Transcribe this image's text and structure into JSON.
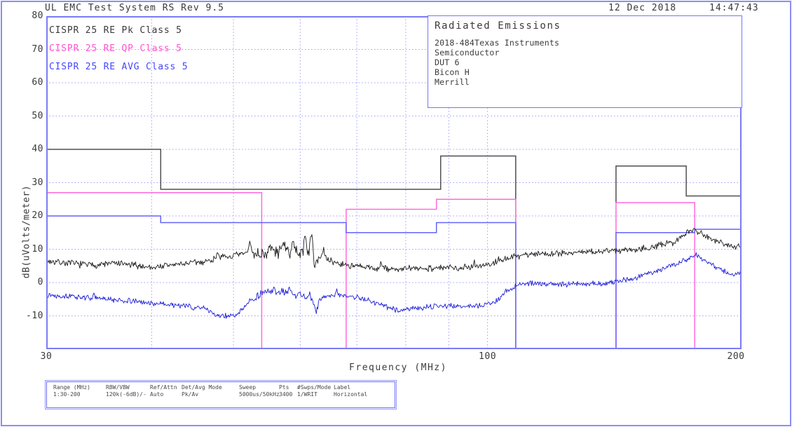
{
  "header": {
    "title": "UL EMC Test System RS Rev 9.5",
    "date": "12 Dec 2018",
    "time": "14:47:43"
  },
  "info_box": {
    "title": "Radiated Emissions",
    "lines": [
      "2018-484Texas Instruments",
      "Semiconductor",
      "DUT 6",
      "Bicon H",
      "Merrill"
    ]
  },
  "legend": [
    {
      "label": "CISPR 25 RE Pk Class 5",
      "color": "#3a3a3a"
    },
    {
      "label": "CISPR 25 RE QP Class 5",
      "color": "#ff55d0"
    },
    {
      "label": "CISPR 25 RE AVG Class 5",
      "color": "#4646ff"
    }
  ],
  "colors": {
    "frame_blue": "#8d8df8",
    "plot_border_blue": "#7b7bf5",
    "grid_dotted_blue": "#9d9dfa",
    "limit_black": "#4f4f4f",
    "limit_magenta": "#ff6ade",
    "limit_blue": "#6363fa",
    "trace_pk": "#1b1b1b",
    "trace_avg": "#1f1fd6"
  },
  "chart_data": {
    "type": "line",
    "title": "Radiated Emissions",
    "xlabel": "Frequency (MHz)",
    "ylabel": "dB(uVolts/meter)",
    "x_scale": "log",
    "xlim": [
      30,
      200
    ],
    "ylim": [
      -20,
      80
    ],
    "x_ticks": [
      30,
      100,
      200
    ],
    "y_ticks": [
      80,
      70,
      60,
      50,
      40,
      30,
      20,
      10,
      0,
      -10
    ],
    "x_gridlines": [
      40,
      50,
      60,
      70,
      80,
      90,
      100
    ],
    "grid": "dotted",
    "legend_position": "top-left",
    "limits": [
      {
        "name": "CISPR 25 RE Pk Class 5",
        "color": "#4f4f4f",
        "polylines": [
          [
            [
              30,
              40
            ],
            [
              41,
              40
            ],
            [
              41,
              28
            ],
            [
              88,
              28
            ],
            [
              88,
              38
            ],
            [
              108,
              38
            ],
            [
              108,
              -20
            ]
          ],
          [
            [
              142,
              24
            ],
            [
              142,
              35
            ],
            [
              172,
              35
            ],
            [
              172,
              26
            ],
            [
              200,
              26
            ]
          ]
        ]
      },
      {
        "name": "CISPR 25 RE QP Class 5",
        "color": "#ff6ade",
        "polylines": [
          [
            [
              30,
              27
            ],
            [
              54,
              27
            ],
            [
              54,
              -20
            ]
          ],
          [
            [
              68,
              -20
            ],
            [
              68,
              22
            ],
            [
              87,
              22
            ],
            [
              87,
              25
            ],
            [
              108,
              25
            ],
            [
              108,
              -20
            ]
          ],
          [
            [
              142,
              -20
            ],
            [
              142,
              24
            ],
            [
              176,
              24
            ],
            [
              176,
              -20
            ]
          ]
        ]
      },
      {
        "name": "CISPR 25 RE AVG Class 5",
        "color": "#6363fa",
        "polylines": [
          [
            [
              30,
              20
            ],
            [
              41,
              20
            ],
            [
              41,
              18
            ],
            [
              68,
              18
            ],
            [
              68,
              15
            ],
            [
              87,
              15
            ],
            [
              87,
              18
            ],
            [
              108,
              18
            ],
            [
              108,
              -20
            ]
          ],
          [
            [
              142,
              -20
            ],
            [
              142,
              15
            ],
            [
              176,
              15
            ],
            [
              176,
              16
            ],
            [
              200,
              16
            ]
          ]
        ]
      }
    ],
    "series": [
      {
        "name": "Pk measurement",
        "color": "#1b1b1b",
        "seed": 7,
        "noise_db": 1.25,
        "anchors": [
          [
            30,
            6.5
          ],
          [
            32,
            5.8
          ],
          [
            34,
            5.2
          ],
          [
            36,
            5.8
          ],
          [
            38,
            5.2
          ],
          [
            40,
            4.6
          ],
          [
            42,
            5.2
          ],
          [
            44,
            5.8
          ],
          [
            46,
            6.2
          ],
          [
            48,
            7.2
          ],
          [
            50,
            8.0
          ],
          [
            52,
            8.8
          ],
          [
            54,
            8.6
          ],
          [
            56,
            9.0
          ],
          [
            58,
            9.2
          ],
          [
            60,
            9.0
          ],
          [
            62,
            9.4
          ],
          [
            63,
            7.8
          ],
          [
            65,
            6.5
          ],
          [
            67,
            5.6
          ],
          [
            70,
            4.8
          ],
          [
            74,
            4.2
          ],
          [
            78,
            4.0
          ],
          [
            82,
            4.2
          ],
          [
            86,
            4.4
          ],
          [
            90,
            4.4
          ],
          [
            94,
            4.6
          ],
          [
            98,
            5.0
          ],
          [
            101,
            5.6
          ],
          [
            104,
            6.6
          ],
          [
            107,
            7.6
          ],
          [
            110,
            8.4
          ],
          [
            115,
            8.7
          ],
          [
            120,
            8.8
          ],
          [
            126,
            9.0
          ],
          [
            132,
            9.2
          ],
          [
            138,
            9.4
          ],
          [
            144,
            9.8
          ],
          [
            150,
            10.1
          ],
          [
            156,
            10.6
          ],
          [
            162,
            11.4
          ],
          [
            166,
            12.2
          ],
          [
            170,
            13.6
          ],
          [
            173,
            15.0
          ],
          [
            176,
            16.2
          ],
          [
            178,
            15.2
          ],
          [
            181,
            14.0
          ],
          [
            185,
            13.0
          ],
          [
            189,
            12.2
          ],
          [
            193,
            11.4
          ],
          [
            197,
            10.9
          ],
          [
            200,
            10.6
          ]
        ],
        "spikes": [
          [
            47.9,
            2.4
          ],
          [
            52.3,
            3.1
          ],
          [
            55.4,
            2.3
          ],
          [
            57.2,
            3.7
          ],
          [
            58.8,
            3.1
          ],
          [
            60.8,
            4.3
          ],
          [
            61.9,
            4.7
          ],
          [
            62.4,
            -3.2
          ],
          [
            63.9,
            1.8
          ],
          [
            74.8,
            1.5
          ],
          [
            96.4,
            1.2
          ],
          [
            103.2,
            1.1
          ],
          [
            172.6,
            1.3
          ]
        ]
      },
      {
        "name": "AVG measurement",
        "color": "#1f1fd6",
        "seed": 13,
        "noise_db": 0.95,
        "anchors": [
          [
            30,
            -3.6
          ],
          [
            32,
            -4.2
          ],
          [
            34,
            -4.6
          ],
          [
            36,
            -5.2
          ],
          [
            38,
            -5.6
          ],
          [
            40,
            -6.2
          ],
          [
            42,
            -6.6
          ],
          [
            44,
            -7.0
          ],
          [
            46,
            -7.4
          ],
          [
            47.5,
            -9.6
          ],
          [
            49,
            -10.0
          ],
          [
            50.5,
            -9.8
          ],
          [
            52,
            -6.0
          ],
          [
            53,
            -4.6
          ],
          [
            54,
            -3.2
          ],
          [
            55,
            -2.8
          ],
          [
            56,
            -3.4
          ],
          [
            57,
            -2.9
          ],
          [
            58,
            -3.2
          ],
          [
            59,
            -4.0
          ],
          [
            60,
            -3.4
          ],
          [
            61,
            -4.4
          ],
          [
            62,
            -5.0
          ],
          [
            62.6,
            -7.6
          ],
          [
            63.4,
            -5.2
          ],
          [
            64.5,
            -4.0
          ],
          [
            66,
            -3.8
          ],
          [
            68,
            -4.0
          ],
          [
            70,
            -4.4
          ],
          [
            72,
            -5.2
          ],
          [
            74,
            -6.2
          ],
          [
            76,
            -7.4
          ],
          [
            78,
            -8.2
          ],
          [
            80,
            -8.0
          ],
          [
            83,
            -7.6
          ],
          [
            86,
            -7.2
          ],
          [
            89,
            -7.0
          ],
          [
            92,
            -7.1
          ],
          [
            95,
            -7.0
          ],
          [
            98,
            -6.8
          ],
          [
            100,
            -6.6
          ],
          [
            102,
            -5.6
          ],
          [
            104,
            -4.2
          ],
          [
            106,
            -2.4
          ],
          [
            108,
            -1.0
          ],
          [
            110,
            -0.4
          ],
          [
            113,
            -0.2
          ],
          [
            116,
            -0.5
          ],
          [
            120,
            -0.3
          ],
          [
            124,
            -0.6
          ],
          [
            128,
            -0.4
          ],
          [
            132,
            -0.2
          ],
          [
            136,
            -0.3
          ],
          [
            140,
            0.0
          ],
          [
            144,
            0.6
          ],
          [
            148,
            1.2
          ],
          [
            152,
            2.0
          ],
          [
            156,
            2.8
          ],
          [
            160,
            3.8
          ],
          [
            164,
            4.8
          ],
          [
            168,
            5.8
          ],
          [
            172,
            6.8
          ],
          [
            175,
            7.8
          ],
          [
            177,
            8.4
          ],
          [
            179,
            7.2
          ],
          [
            182,
            6.0
          ],
          [
            185,
            5.0
          ],
          [
            188,
            4.2
          ],
          [
            191,
            3.4
          ],
          [
            194,
            2.9
          ],
          [
            197,
            2.5
          ],
          [
            200,
            2.6
          ]
        ],
        "spikes": [
          [
            34.2,
            0.7
          ],
          [
            44.8,
            -1.2
          ],
          [
            55.8,
            1.5
          ],
          [
            58.2,
            1.3
          ],
          [
            61.5,
            1.1
          ],
          [
            62.6,
            -1.5
          ],
          [
            66.3,
            1.1
          ],
          [
            105.4,
            0.8
          ]
        ]
      }
    ]
  },
  "settings_table": {
    "columns": [
      {
        "header": "Range (MHz)",
        "value": "1:30-200"
      },
      {
        "header": "RBW/VBW",
        "value": "120k(-6dB)/-"
      },
      {
        "header": "Ref/Attn",
        "value": "Auto"
      },
      {
        "header": "Det/Avg Mode",
        "value": "Pk/Av"
      },
      {
        "header": "Sweep",
        "value": "5000us/50kHz"
      },
      {
        "header": "Pts",
        "value": "3400"
      },
      {
        "header": "#Swps/Mode",
        "value": "1/WRIT"
      },
      {
        "header": "Label",
        "value": "Horizontal"
      }
    ]
  }
}
